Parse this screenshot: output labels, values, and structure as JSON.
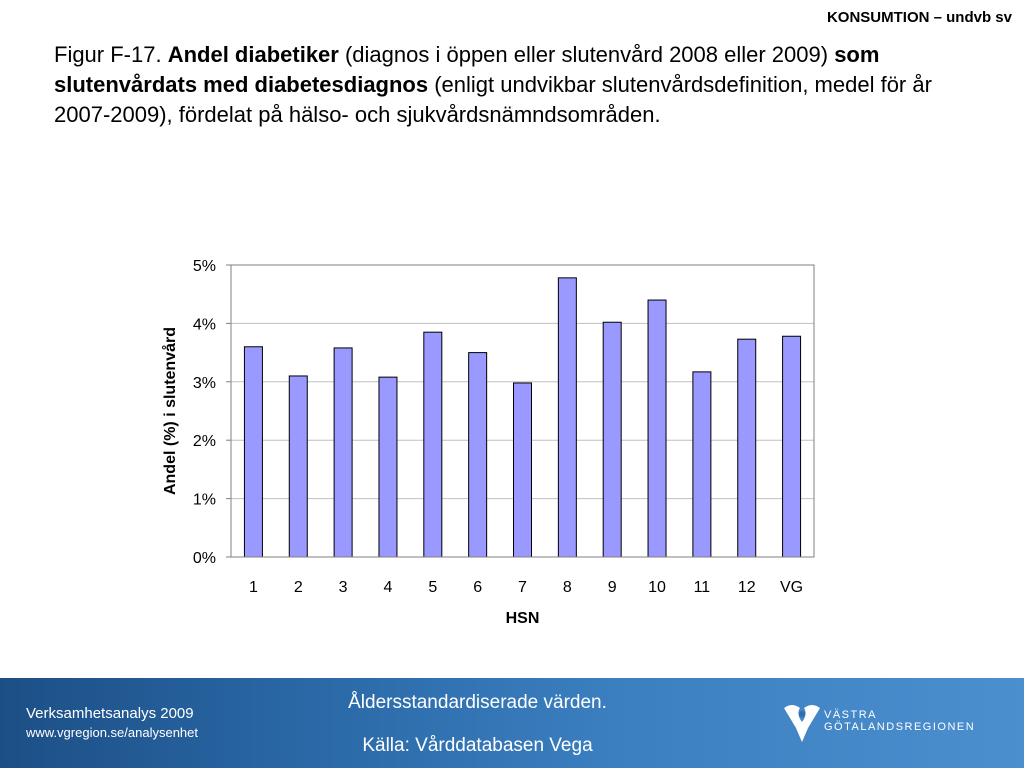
{
  "header_tag": "KONSUMTION – undvb sv",
  "figure": {
    "prefix": "Figur F-17. ",
    "bold1": "Andel diabetiker",
    "text1": " (diagnos i öppen eller slutenvård 2008 eller 2009) ",
    "bold2": "som slutenvårdats med diabetesdiagnos",
    "text2": " (enligt undvikbar slutenvårdsdefinition, medel för år 2007-2009), fördelat på hälso- och sjukvårdsnämndsområden."
  },
  "chart_data": {
    "type": "bar",
    "categories": [
      "1",
      "2",
      "3",
      "4",
      "5",
      "6",
      "7",
      "8",
      "9",
      "10",
      "11",
      "12",
      "VG"
    ],
    "values": [
      3.6,
      3.1,
      3.58,
      3.08,
      3.85,
      3.5,
      2.98,
      4.78,
      4.02,
      4.4,
      3.17,
      3.73,
      3.78
    ],
    "xlabel": "HSN",
    "ylabel": "Andel (%) i slutenvård",
    "ylim": [
      0,
      5
    ],
    "yticks": [
      0,
      1,
      2,
      3,
      4,
      5
    ],
    "ytick_labels": [
      "0%",
      "1%",
      "2%",
      "3%",
      "4%",
      "5%"
    ],
    "grid": true,
    "bar_color": "#9999ff"
  },
  "footer": {
    "line1": "Verksamhetsanalys 2009",
    "line2": "www.vgregion.se/analysenhet",
    "center1": "Åldersstandardiserade värden.",
    "center2": "Källa: Vårddatabasen Vega",
    "logo_line1": "VÄSTRA",
    "logo_line2": "GÖTALANDSREGIONEN"
  }
}
